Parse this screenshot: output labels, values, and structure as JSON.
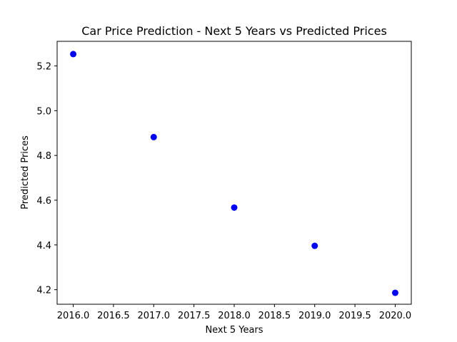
{
  "chart_data": {
    "type": "scatter",
    "title": "Car Price Prediction - Next 5 Years vs Predicted Prices",
    "xlabel": "Next 5 Years",
    "ylabel": "Predicted Prices",
    "xlim": [
      2015.8,
      2020.2
    ],
    "ylim": [
      4.135,
      5.31
    ],
    "xticks": [
      2016.0,
      2016.5,
      2017.0,
      2017.5,
      2018.0,
      2018.5,
      2019.0,
      2019.5,
      2020.0
    ],
    "xtick_labels": [
      "2016.0",
      "2016.5",
      "2017.0",
      "2017.5",
      "2018.0",
      "2018.5",
      "2019.0",
      "2019.5",
      "2020.0"
    ],
    "yticks": [
      4.2,
      4.4,
      4.6,
      4.8,
      5.0,
      5.2
    ],
    "ytick_labels": [
      "4.2",
      "4.4",
      "4.6",
      "4.8",
      "5.0",
      "5.2"
    ],
    "grid": false,
    "point_color": "#0000ff",
    "series": [
      {
        "x": [
          2016,
          2017,
          2018,
          2019,
          2020
        ],
        "y": [
          5.253,
          4.882,
          4.567,
          4.396,
          4.186
        ]
      }
    ]
  }
}
